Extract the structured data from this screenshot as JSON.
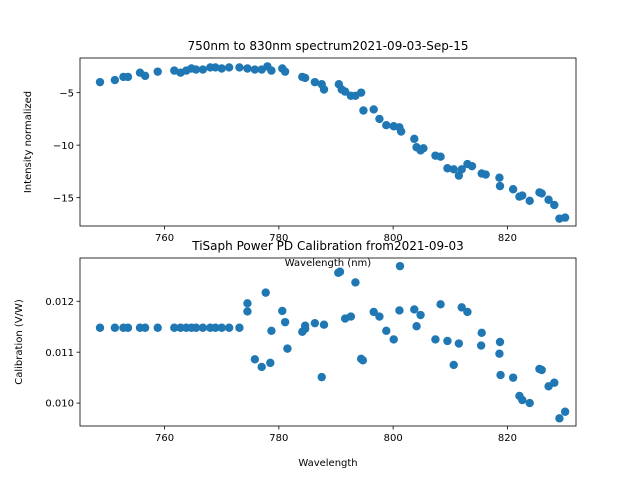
{
  "figure": {
    "marker_color": "#1f77b4"
  },
  "chart_data": [
    {
      "type": "scatter",
      "title": "750nm to 830nm spectrum2021-09-03-Sep-15",
      "xlabel": "Wavelength (nm)",
      "ylabel": "Intensity normalized",
      "xlim": [
        745.2,
        832.0
      ],
      "ylim": [
        -17.7,
        -1.7
      ],
      "xticks": [
        760,
        780,
        800,
        820
      ],
      "xtick_labels": [
        "760",
        "780",
        "800",
        "820"
      ],
      "yticks": [
        -5,
        -10,
        -15
      ],
      "ytick_labels": [
        "−5",
        "−10",
        "−15"
      ],
      "grid": false,
      "legend": "none",
      "series": [
        {
          "x": [
            748.7,
            751.3,
            752.8,
            753.6,
            755.7,
            756.6,
            758.8,
            761.7,
            762.8,
            763.8,
            764.7,
            765.5,
            766.7,
            768.0,
            768.9,
            770.0,
            771.3,
            773.1,
            774.5,
            775.8,
            777.0,
            778.0,
            778.7,
            780.6,
            781.1,
            784.1,
            784.6,
            786.3,
            787.5,
            787.9,
            790.5,
            791.0,
            791.6,
            792.6,
            793.4,
            794.4,
            794.8,
            796.6,
            797.6,
            798.8,
            800.1,
            801.1,
            801.4,
            803.7,
            804.1,
            804.8,
            805.3,
            807.4,
            808.3,
            809.5,
            810.6,
            811.5,
            812.0,
            813.0,
            813.8,
            815.5,
            816.2,
            818.6,
            818.7,
            821.0,
            822.1,
            822.6,
            823.9,
            825.6,
            826.0,
            827.2,
            828.2,
            829.1,
            830.1
          ],
          "y": [
            -4.0,
            -3.8,
            -3.5,
            -3.5,
            -3.1,
            -3.4,
            -3.0,
            -2.9,
            -3.1,
            -2.9,
            -2.7,
            -2.8,
            -2.8,
            -2.6,
            -2.6,
            -2.7,
            -2.6,
            -2.6,
            -2.7,
            -2.8,
            -2.8,
            -2.5,
            -2.9,
            -2.7,
            -3.0,
            -3.5,
            -3.6,
            -4.0,
            -4.2,
            -4.7,
            -4.2,
            -4.7,
            -4.9,
            -5.3,
            -5.3,
            -5.0,
            -6.7,
            -6.6,
            -7.5,
            -8.1,
            -8.2,
            -8.3,
            -8.7,
            -9.4,
            -10.2,
            -10.5,
            -10.3,
            -11.0,
            -11.1,
            -12.2,
            -12.3,
            -12.9,
            -12.3,
            -11.8,
            -12.0,
            -12.7,
            -12.8,
            -13.1,
            -13.9,
            -14.2,
            -14.9,
            -14.8,
            -15.3,
            -14.5,
            -14.6,
            -15.2,
            -15.7,
            -17.0,
            -16.9
          ]
        }
      ]
    },
    {
      "type": "scatter",
      "title": "TiSaph Power PD Calibration from2021-09-03",
      "xlabel": "Wavelength",
      "ylabel": "Calibration (V/W)",
      "xlim": [
        745.2,
        832.0
      ],
      "ylim": [
        0.00955,
        0.01285
      ],
      "xticks": [
        760,
        780,
        800,
        820
      ],
      "xtick_labels": [
        "760",
        "780",
        "800",
        "820"
      ],
      "yticks": [
        0.01,
        0.011,
        0.012
      ],
      "ytick_labels": [
        "0.010",
        "0.011",
        "0.012"
      ],
      "grid": false,
      "legend": "none",
      "series": [
        {
          "x": [
            748.7,
            751.3,
            752.8,
            753.6,
            755.7,
            756.6,
            758.8,
            761.7,
            762.8,
            763.8,
            764.7,
            765.5,
            766.7,
            768.0,
            768.9,
            770.0,
            771.3,
            773.1,
            774.5,
            774.5,
            775.8,
            777.0,
            777.7,
            778.5,
            778.7,
            780.6,
            781.1,
            781.5,
            784.1,
            784.6,
            784.6,
            786.3,
            787.5,
            787.9,
            790.4,
            790.7,
            791.6,
            792.6,
            793.4,
            794.4,
            794.7,
            796.6,
            797.6,
            798.8,
            800.1,
            801.1,
            801.2,
            803.7,
            804.1,
            804.8,
            807.4,
            808.3,
            809.5,
            810.6,
            811.5,
            812.0,
            813.0,
            815.5,
            815.4,
            818.6,
            818.7,
            818.8,
            821.0,
            822.1,
            822.6,
            823.9,
            825.6,
            826.0,
            827.2,
            828.2,
            829.1,
            830.1
          ],
          "y": [
            0.01148,
            0.01148,
            0.01148,
            0.01148,
            0.01148,
            0.01148,
            0.01148,
            0.01148,
            0.01148,
            0.01148,
            0.01148,
            0.01148,
            0.01148,
            0.01148,
            0.01148,
            0.01148,
            0.01148,
            0.01148,
            0.0118,
            0.01196,
            0.01086,
            0.01071,
            0.01217,
            0.01079,
            0.01142,
            0.01181,
            0.01159,
            0.01107,
            0.0114,
            0.01146,
            0.01152,
            0.01157,
            0.01051,
            0.01154,
            0.01256,
            0.01258,
            0.01166,
            0.0117,
            0.01237,
            0.01087,
            0.01084,
            0.01179,
            0.0117,
            0.01142,
            0.01125,
            0.01182,
            0.01269,
            0.01184,
            0.01151,
            0.01173,
            0.01125,
            0.01194,
            0.01122,
            0.01075,
            0.01117,
            0.01188,
            0.01179,
            0.01138,
            0.01113,
            0.01097,
            0.0112,
            0.01055,
            0.0105,
            0.01014,
            0.01006,
            0.01,
            0.01067,
            0.01065,
            0.01033,
            0.0104,
            0.0097,
            0.00983
          ]
        }
      ]
    }
  ]
}
